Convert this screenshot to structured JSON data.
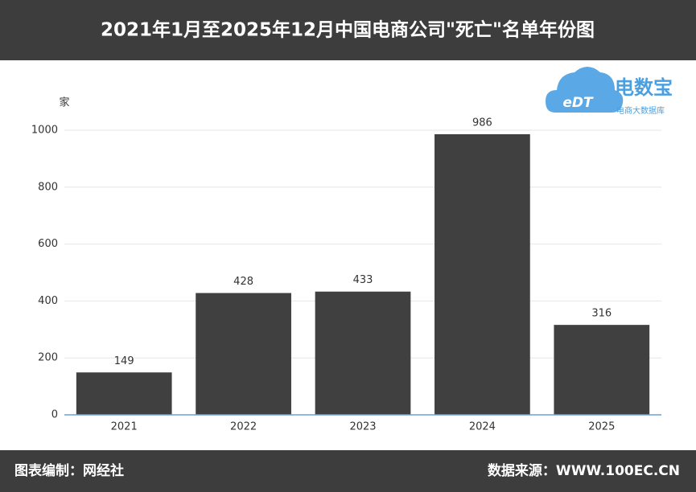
{
  "chart_data": {
    "type": "bar",
    "title": "2021年1月至2025年12月中国电商公司\"死亡\"名单年份图",
    "y_label": "家",
    "categories": [
      "2021",
      "2022",
      "2023",
      "2024",
      "2025"
    ],
    "values": [
      149,
      428,
      433,
      986,
      316
    ],
    "color": "#404040",
    "ylim": [
      0,
      1000
    ],
    "yticks": [
      0,
      200,
      400,
      600,
      800,
      1000
    ],
    "grid": true
  },
  "logo": {
    "mark": "eDT",
    "name": "电数宝",
    "tagline": "电商大数据库"
  },
  "footer": {
    "left": "图表编制：网经社",
    "right": "数据来源：WWW.100EC.CN"
  }
}
